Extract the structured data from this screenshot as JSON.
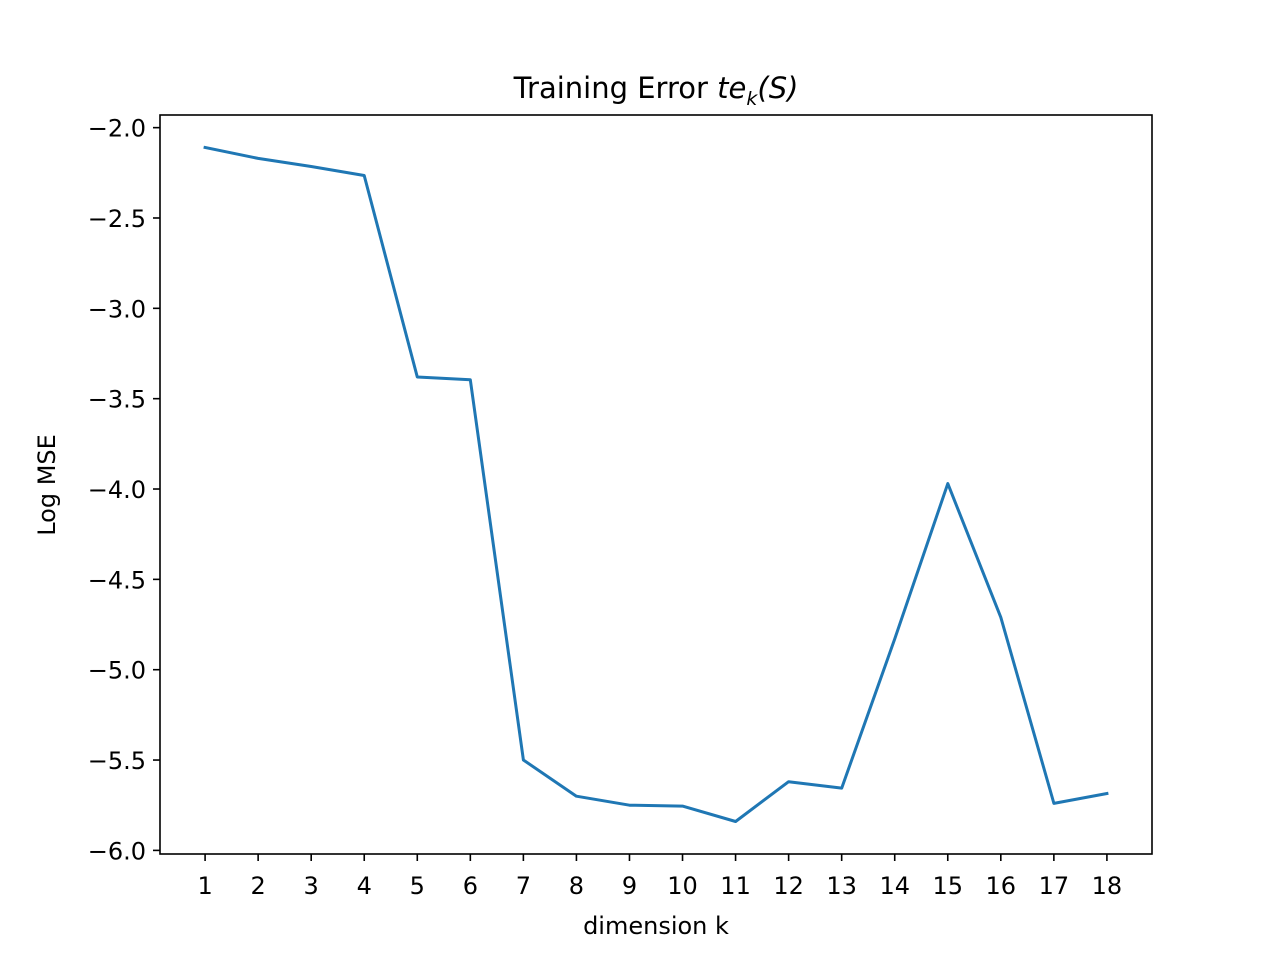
{
  "chart_data": {
    "type": "line",
    "title_prefix": "Training Error ",
    "title_math_base": "te",
    "title_math_sub": "k",
    "title_math_arg": "(S)",
    "xlabel": "dimension k",
    "ylabel": "Log MSE",
    "xlim": [
      0.15,
      18.85
    ],
    "ylim": [
      -6.02,
      -1.93
    ],
    "x_ticks": [
      1,
      2,
      3,
      4,
      5,
      6,
      7,
      8,
      9,
      10,
      11,
      12,
      13,
      14,
      15,
      16,
      17,
      18
    ],
    "y_ticks": [
      -2.0,
      -2.5,
      -3.0,
      -3.5,
      -4.0,
      -4.5,
      -5.0,
      -5.5,
      -6.0
    ],
    "y_tick_labels": [
      "−2.0",
      "−2.5",
      "−3.0",
      "−3.5",
      "−4.0",
      "−4.5",
      "−5.0",
      "−5.5",
      "−6.0"
    ],
    "grid": false,
    "series": [
      {
        "color": "#1f77b4",
        "x": [
          1,
          2,
          3,
          4,
          5,
          6,
          7,
          8,
          9,
          10,
          11,
          12,
          13,
          14,
          15,
          16,
          17,
          18
        ],
        "y": [
          -2.11,
          -2.17,
          -2.215,
          -2.265,
          -3.38,
          -3.395,
          -5.5,
          -5.7,
          -5.75,
          -5.755,
          -5.84,
          -5.62,
          -5.655,
          -4.83,
          -3.97,
          -4.71,
          -5.74,
          -5.685
        ]
      }
    ]
  }
}
